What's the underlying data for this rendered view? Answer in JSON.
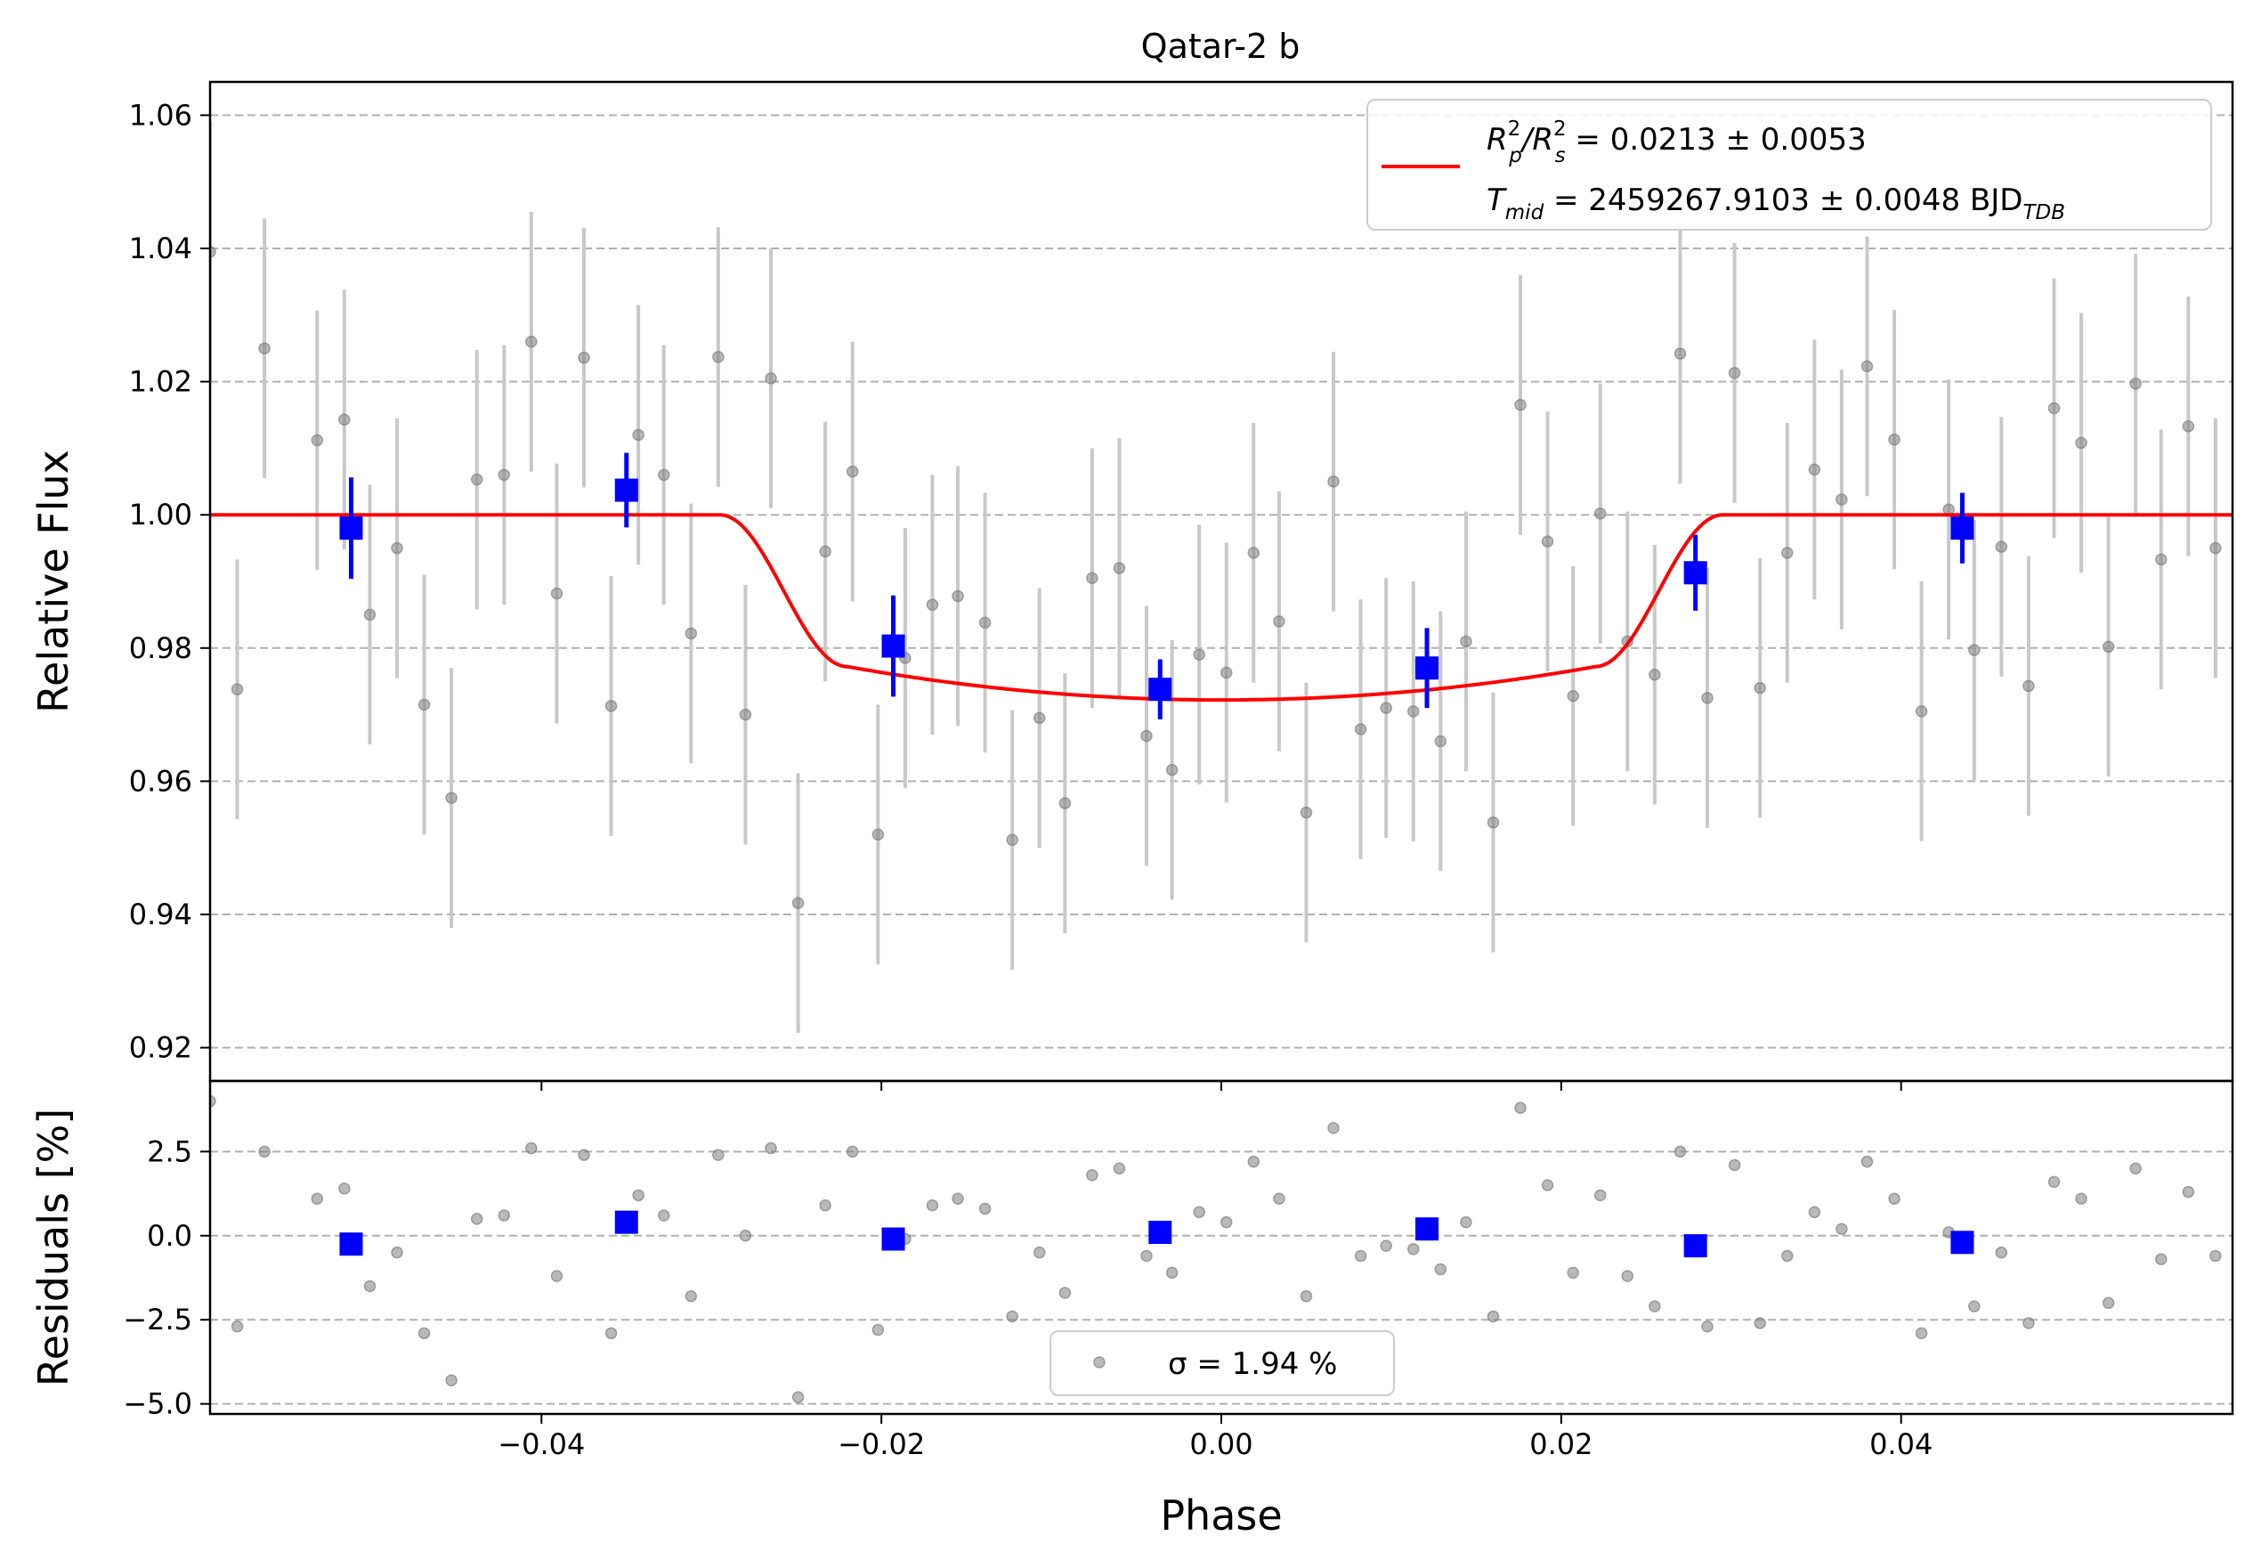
{
  "chart_data": [
    {
      "type": "scatter",
      "panel": "main",
      "title": "Qatar-2 b",
      "xlabel": "",
      "ylabel": "Relative Flux",
      "xlim": [
        -0.0595,
        0.0595
      ],
      "ylim": [
        0.915,
        1.065
      ],
      "xticks": [
        -0.04,
        -0.02,
        0.0,
        0.02,
        0.04
      ],
      "xtick_labels": [
        "",
        "",
        "",
        "",
        ""
      ],
      "yticks": [
        0.92,
        0.94,
        0.96,
        0.98,
        1.0,
        1.02,
        1.04,
        1.06
      ],
      "ytick_labels": [
        "0.92",
        "0.94",
        "0.96",
        "0.98",
        "1.00",
        "1.02",
        "1.04",
        "1.06"
      ],
      "grid": "horizontal dashed",
      "legend_position": "top-right",
      "colors": {
        "raw": "#808080",
        "errorbar": "#c8c8c8",
        "binned": "#0000ff",
        "model": "#ff0000",
        "grid": "#b0b0b0"
      },
      "series": [
        {
          "name": "",
          "kind": "raw",
          "x": [
            -0.0595,
            -0.0579,
            -0.0563,
            -0.0532,
            -0.0516,
            -0.0501,
            -0.0485,
            -0.0469,
            -0.0453,
            -0.0438,
            -0.0422,
            -0.0406,
            -0.0391,
            -0.0375,
            -0.0359,
            -0.0343,
            -0.0328,
            -0.0312,
            -0.0296,
            -0.028,
            -0.0265,
            -0.0249,
            -0.0233,
            -0.0217,
            -0.0202,
            -0.0186,
            -0.017,
            -0.0155,
            -0.0139,
            -0.0123,
            -0.0107,
            -0.0092,
            -0.0076,
            -0.006,
            -0.0044,
            -0.0029,
            -0.0013,
            0.0003,
            0.0019,
            0.0034,
            0.005,
            0.0066,
            0.0082,
            0.0097,
            0.0113,
            0.0129,
            0.0144,
            0.016,
            0.0176,
            0.0192,
            0.0207,
            0.0223,
            0.0239,
            0.0255,
            0.027,
            0.0286,
            0.0302,
            0.0317,
            0.0333,
            0.0349,
            0.0365,
            0.038,
            0.0396,
            0.0412,
            0.0428,
            0.0443,
            0.0459,
            0.0475,
            0.049,
            0.0506,
            0.0522,
            0.0538,
            0.0553,
            0.0569,
            0.0585
          ],
          "y": [
            1.0395,
            0.9738,
            1.025,
            1.0112,
            1.0143,
            0.985,
            0.995,
            0.9715,
            0.9575,
            1.0053,
            1.006,
            1.026,
            0.9882,
            1.0236,
            0.9713,
            1.012,
            1.006,
            0.9822,
            1.0237,
            0.97,
            1.0205,
            0.9417,
            0.9945,
            1.0065,
            0.952,
            0.9785,
            0.9865,
            0.9878,
            0.9838,
            0.9512,
            0.9695,
            0.9567,
            0.9905,
            0.992,
            0.9668,
            0.9617,
            0.979,
            0.9763,
            0.9943,
            0.984,
            0.9553,
            1.005,
            0.9678,
            0.971,
            0.9705,
            0.966,
            0.981,
            0.9538,
            1.0165,
            0.996,
            0.9728,
            1.0002,
            0.981,
            0.976,
            1.0242,
            0.9725,
            1.0213,
            0.974,
            0.9943,
            1.0068,
            1.0023,
            1.0223,
            1.0113,
            0.9705,
            1.0008,
            0.9797,
            0.9952,
            0.9743,
            1.016,
            1.0108,
            0.9802,
            1.0197,
            0.9933,
            1.0133,
            0.995
          ],
          "yerr": 0.0195
        },
        {
          "name": "",
          "kind": "binned",
          "x": [
            -0.0512,
            -0.035,
            -0.0193,
            -0.0036,
            0.0121,
            0.0279,
            0.0436
          ],
          "y": [
            0.998,
            1.0037,
            0.9803,
            0.9738,
            0.977,
            0.9913,
            0.998
          ],
          "yerr": [
            0.0076,
            0.0056,
            0.0076,
            0.0045,
            0.006,
            0.0057,
            0.0053
          ]
        },
        {
          "name": "R_p^2/R_s^2 = 0.0213 ± 0.0053",
          "kind": "model",
          "depth": 0.0278,
          "t14": 0.059,
          "t23": 0.044
        }
      ],
      "legend": {
        "line1": {
          "main": "R",
          "p_sup": "2",
          "p_sub": "p",
          "slash": "/R",
          "s_sup": "2",
          "s_sub": "s",
          "value": " = 0.0213 ± 0.0053"
        },
        "line2": {
          "main": "T",
          "sub": "mid",
          "value": " = 2459267.9103 ± 0.0048 BJD",
          "unit_sub": "TDB"
        }
      }
    },
    {
      "type": "scatter",
      "panel": "residuals",
      "xlabel": "Phase",
      "ylabel": "Residuals [%]",
      "xlim": [
        -0.0595,
        0.0595
      ],
      "ylim": [
        -5.3,
        4.6
      ],
      "xticks": [
        -0.04,
        -0.02,
        0.0,
        0.02,
        0.04
      ],
      "xtick_labels": [
        "−0.04",
        "−0.02",
        "0.00",
        "0.02",
        "0.04"
      ],
      "yticks": [
        -5.0,
        -2.5,
        0.0,
        2.5
      ],
      "ytick_labels": [
        "−5.0",
        "−2.5",
        "0.0",
        "2.5"
      ],
      "grid": "horizontal dashed",
      "legend_position": "bottom-center",
      "legend_text": "σ = 1.94 %",
      "series": [
        {
          "name": "",
          "kind": "raw",
          "x": [
            -0.0595,
            -0.0579,
            -0.0563,
            -0.0532,
            -0.0516,
            -0.0501,
            -0.0485,
            -0.0469,
            -0.0453,
            -0.0438,
            -0.0422,
            -0.0406,
            -0.0391,
            -0.0375,
            -0.0359,
            -0.0343,
            -0.0328,
            -0.0312,
            -0.0296,
            -0.028,
            -0.0265,
            -0.0249,
            -0.0233,
            -0.0217,
            -0.0202,
            -0.0186,
            -0.017,
            -0.0155,
            -0.0139,
            -0.0123,
            -0.0107,
            -0.0092,
            -0.0076,
            -0.006,
            -0.0044,
            -0.0029,
            -0.0013,
            0.0003,
            0.0019,
            0.0034,
            0.005,
            0.0066,
            0.0082,
            0.0097,
            0.0113,
            0.0129,
            0.0144,
            0.016,
            0.0176,
            0.0192,
            0.0207,
            0.0223,
            0.0239,
            0.0255,
            0.027,
            0.0286,
            0.0302,
            0.0317,
            0.0333,
            0.0349,
            0.0365,
            0.038,
            0.0396,
            0.0412,
            0.0428,
            0.0443,
            0.0459,
            0.0475,
            0.049,
            0.0506,
            0.0522,
            0.0538,
            0.0553,
            0.0569,
            0.0585
          ],
          "y": [
            4.0,
            -2.7,
            2.5,
            1.1,
            1.4,
            -1.5,
            -0.5,
            -2.9,
            -4.3,
            0.5,
            0.6,
            2.6,
            -1.2,
            2.4,
            -2.9,
            1.2,
            0.6,
            -1.8,
            2.4,
            0.0,
            2.6,
            -4.8,
            0.9,
            2.5,
            -2.8,
            -0.1,
            0.9,
            1.1,
            0.8,
            -2.4,
            -0.5,
            -1.7,
            1.8,
            2.0,
            -0.6,
            -1.1,
            0.7,
            0.4,
            2.2,
            1.1,
            -1.8,
            3.2,
            -0.6,
            -0.3,
            -0.4,
            -1.0,
            0.4,
            -2.4,
            3.8,
            1.5,
            -1.1,
            1.2,
            -1.2,
            -2.1,
            2.5,
            -2.7,
            2.1,
            -2.6,
            -0.6,
            0.7,
            0.2,
            2.2,
            1.1,
            -2.9,
            0.1,
            -2.1,
            -0.5,
            -2.6,
            1.6,
            1.1,
            -2.0,
            2.0,
            -0.7,
            1.3,
            -0.6
          ]
        },
        {
          "name": "",
          "kind": "binned",
          "x": [
            -0.0512,
            -0.035,
            -0.0193,
            -0.0036,
            0.0121,
            0.0279,
            0.0436
          ],
          "y": [
            -0.25,
            0.4,
            -0.1,
            0.1,
            0.2,
            -0.3,
            -0.2
          ]
        }
      ]
    }
  ]
}
